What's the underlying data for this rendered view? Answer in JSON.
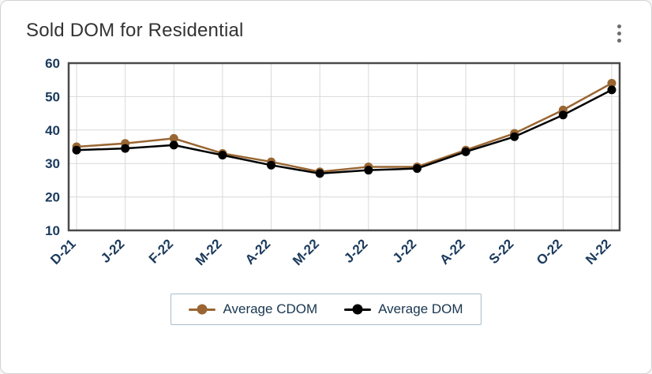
{
  "card": {
    "title": "Sold DOM for Residential",
    "menu_icon": "kebab-menu-icon"
  },
  "chart_data": {
    "type": "line",
    "title": "Sold DOM for Residential",
    "categories": [
      "D-21",
      "J-22",
      "F-22",
      "M-22",
      "A-22",
      "M-22",
      "J-22",
      "J-22",
      "A-22",
      "S-22",
      "O-22",
      "N-22"
    ],
    "series": [
      {
        "name": "Average CDOM",
        "color": "#996633",
        "values": [
          35,
          36,
          37.5,
          33,
          30.5,
          27.5,
          29,
          29,
          34,
          39,
          46,
          54
        ]
      },
      {
        "name": "Average DOM",
        "color": "#000000",
        "values": [
          34,
          34.5,
          35.5,
          32.5,
          29.5,
          27,
          28,
          28.5,
          33.5,
          38,
          44.5,
          52
        ]
      }
    ],
    "ylim": [
      10,
      60
    ],
    "yticks": [
      10,
      20,
      30,
      40,
      50,
      60
    ],
    "grid": true,
    "legend_position": "bottom",
    "axis_label_color": "#1b3a5c",
    "gridline_color": "#d9d9d9",
    "border_color": "#4a4a4a"
  }
}
